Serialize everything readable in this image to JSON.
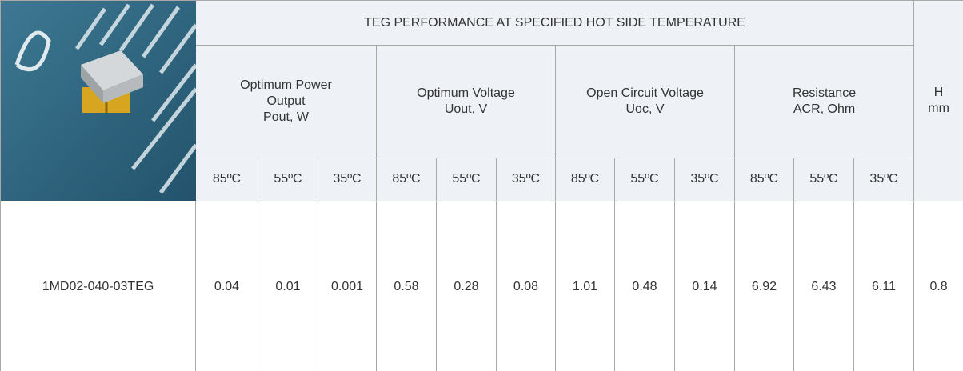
{
  "header": {
    "title": "TEG PERFORMANCE AT SPECIFIED HOT SIDE TEMPERATURE",
    "groups": [
      {
        "lines": [
          "Optimum Power",
          "Output",
          "Pout, W"
        ],
        "temps": [
          "85ºC",
          "55ºC",
          "35ºC"
        ]
      },
      {
        "lines": [
          "Optimum Voltage",
          "Uout, V"
        ],
        "temps": [
          "85ºC",
          "55ºC",
          "35ºC"
        ]
      },
      {
        "lines": [
          "Open Circuit Voltage",
          "Uoc, V"
        ],
        "temps": [
          "85ºC",
          "55ºC",
          "35ºC"
        ]
      },
      {
        "lines": [
          "Resistance",
          "ACR, Ohm"
        ],
        "temps": [
          "85ºC",
          "55ºC",
          "35ºC"
        ]
      }
    ],
    "height": {
      "lines": [
        "H",
        "mm"
      ]
    }
  },
  "table": {
    "rows": [
      [
        "1MD02-040-03TEG",
        "0.04",
        "0.01",
        "0.001",
        "0.58",
        "0.28",
        "0.08",
        "1.01",
        "0.48",
        "0.14",
        "6.92",
        "6.43",
        "6.11",
        "0.8"
      ]
    ]
  }
}
